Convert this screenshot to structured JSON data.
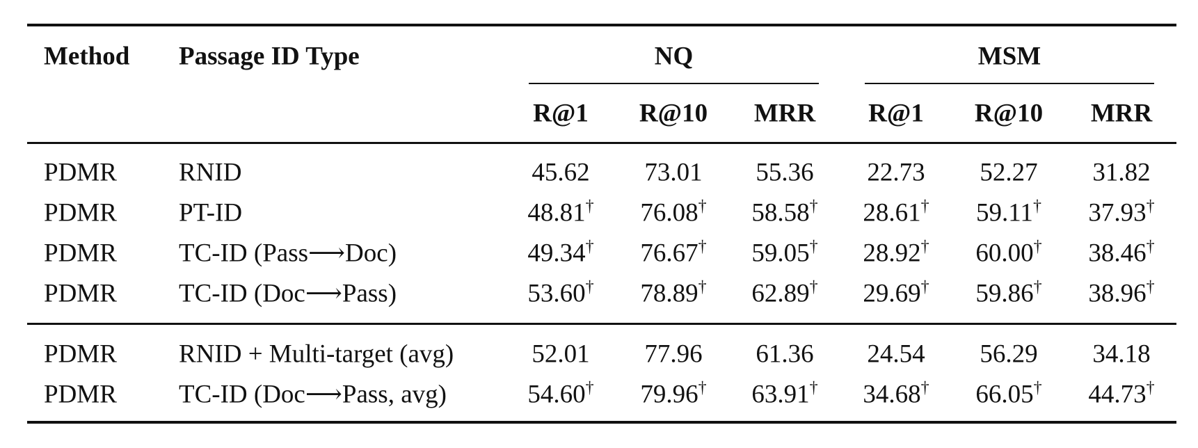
{
  "table": {
    "header": {
      "method": "Method",
      "id_type": "Passage ID Type",
      "groups": [
        "NQ",
        "MSM"
      ],
      "metrics": [
        "R@1",
        "R@10",
        "MRR",
        "R@1",
        "R@10",
        "MRR"
      ]
    },
    "sections": [
      {
        "rows": [
          {
            "method": "PDMR",
            "id_type": "RNID",
            "cells": [
              {
                "text": "45.62"
              },
              {
                "text": "73.01"
              },
              {
                "text": "55.36"
              },
              {
                "text": "22.73"
              },
              {
                "text": "52.27"
              },
              {
                "text": "31.82"
              }
            ]
          },
          {
            "method": "PDMR",
            "id_type": "PT-ID",
            "cells": [
              {
                "text": "48.81",
                "sup": "†"
              },
              {
                "text": "76.08",
                "sup": "†"
              },
              {
                "text": "58.58",
                "sup": "†"
              },
              {
                "text": "28.61",
                "sup": "†"
              },
              {
                "text": "59.11",
                "sup": "†"
              },
              {
                "text": "37.93",
                "sup": "†"
              }
            ]
          },
          {
            "method": "PDMR",
            "id_type": "TC-ID (Pass⟶Doc)",
            "cells": [
              {
                "text": "49.34",
                "sup": "†"
              },
              {
                "text": "76.67",
                "sup": "†"
              },
              {
                "text": "59.05",
                "sup": "†"
              },
              {
                "text": "28.92",
                "sup": "†"
              },
              {
                "text": "60.00",
                "sup": "†"
              },
              {
                "text": "38.46",
                "sup": "†"
              }
            ]
          },
          {
            "method": "PDMR",
            "id_type": "TC-ID (Doc⟶Pass)",
            "cells": [
              {
                "text": "53.60",
                "sup": "†"
              },
              {
                "text": "78.89",
                "sup": "†"
              },
              {
                "text": "62.89",
                "sup": "†"
              },
              {
                "text": "29.69",
                "sup": "†"
              },
              {
                "text": "59.86",
                "sup": "†"
              },
              {
                "text": "38.96",
                "sup": "†"
              }
            ]
          }
        ]
      },
      {
        "rows": [
          {
            "method": "PDMR",
            "id_type": "RNID + Multi-target (avg)",
            "cells": [
              {
                "text": "52.01"
              },
              {
                "text": "77.96"
              },
              {
                "text": "61.36"
              },
              {
                "text": "24.54"
              },
              {
                "text": "56.29"
              },
              {
                "text": "34.18"
              }
            ]
          },
          {
            "method": "PDMR",
            "id_type": "TC-ID (Doc⟶Pass, avg)",
            "cells": [
              {
                "text": "54.60",
                "sup": "†"
              },
              {
                "text": "79.96",
                "sup": "†"
              },
              {
                "text": "63.91",
                "sup": "†"
              },
              {
                "text": "34.68",
                "sup": "†"
              },
              {
                "text": "66.05",
                "sup": "†"
              },
              {
                "text": "44.73",
                "sup": "†"
              }
            ]
          }
        ]
      }
    ]
  }
}
